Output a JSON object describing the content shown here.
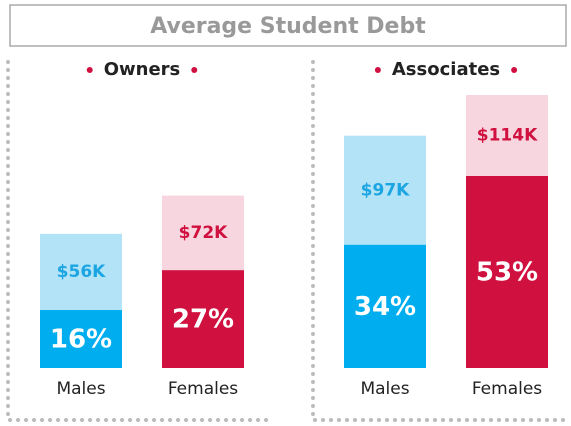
{
  "title": "Average Student Debt",
  "chart_data": [
    {
      "type": "bar",
      "title": "Owners",
      "categories": [
        "Males",
        "Females"
      ],
      "series": [
        {
          "colors": [
            "#b3e3f7",
            "#f7d6df"
          ],
          "label_colors": [
            "#1ba5e2",
            "#d0103e"
          ],
          "values": [
            56,
            72
          ],
          "value_labels": [
            "$56K",
            "$72K"
          ]
        },
        {
          "colors": [
            "#00aeef",
            "#d0103e"
          ],
          "values": [
            16,
            27
          ],
          "value_labels": [
            "16%",
            "27%"
          ]
        }
      ]
    },
    {
      "type": "bar",
      "title": "Associates",
      "categories": [
        "Males",
        "Females"
      ],
      "series": [
        {
          "colors": [
            "#b3e3f7",
            "#f7d6df"
          ],
          "label_colors": [
            "#1ba5e2",
            "#d0103e"
          ],
          "values": [
            97,
            114
          ],
          "value_labels": [
            "$97K",
            "$114K"
          ]
        },
        {
          "colors": [
            "#00aeef",
            "#d0103e"
          ],
          "values": [
            34,
            53
          ],
          "value_labels": [
            "34%",
            "53%"
          ]
        }
      ]
    }
  ]
}
